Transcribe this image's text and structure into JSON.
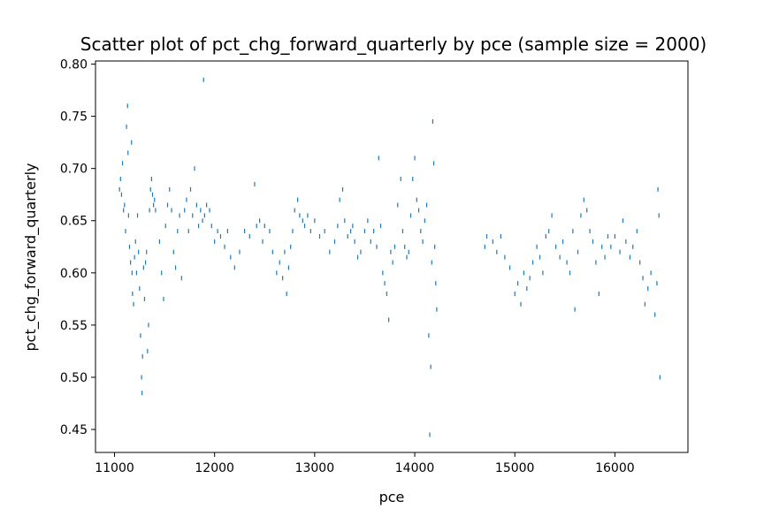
{
  "chart_data": {
    "type": "scatter",
    "title": "Scatter plot of pct_chg_forward_quarterly by pce (sample size = 2000)",
    "xlabel": "pce",
    "ylabel": "pct_chg_forward_quarterly",
    "xlim": [
      10810,
      16730
    ],
    "ylim": [
      0.428,
      0.803
    ],
    "xticks": [
      11000,
      12000,
      13000,
      14000,
      15000,
      16000
    ],
    "xtick_labels": [
      "11000",
      "12000",
      "13000",
      "14000",
      "15000",
      "16000"
    ],
    "yticks": [
      0.45,
      0.5,
      0.55,
      0.6,
      0.65,
      0.7,
      0.75,
      0.8
    ],
    "ytick_labels": [
      "0.45",
      "0.50",
      "0.55",
      "0.60",
      "0.65",
      "0.70",
      "0.75",
      "0.80"
    ],
    "grid": false,
    "marker_color": "#1f77b4",
    "series": [
      {
        "points": [
          [
            11050,
            0.68
          ],
          [
            11060,
            0.69
          ],
          [
            11070,
            0.675
          ],
          [
            11080,
            0.705
          ],
          [
            11090,
            0.66
          ],
          [
            11100,
            0.665
          ],
          [
            11110,
            0.64
          ],
          [
            11120,
            0.74
          ],
          [
            11130,
            0.76
          ],
          [
            11135,
            0.715
          ],
          [
            11140,
            0.655
          ],
          [
            11150,
            0.625
          ],
          [
            11160,
            0.61
          ],
          [
            11170,
            0.725
          ],
          [
            11175,
            0.6
          ],
          [
            11180,
            0.58
          ],
          [
            11190,
            0.57
          ],
          [
            11200,
            0.615
          ],
          [
            11210,
            0.63
          ],
          [
            11220,
            0.6
          ],
          [
            11230,
            0.655
          ],
          [
            11240,
            0.62
          ],
          [
            11250,
            0.585
          ],
          [
            11260,
            0.54
          ],
          [
            11270,
            0.5
          ],
          [
            11275,
            0.485
          ],
          [
            11280,
            0.52
          ],
          [
            11290,
            0.605
          ],
          [
            11300,
            0.575
          ],
          [
            11310,
            0.61
          ],
          [
            11320,
            0.62
          ],
          [
            11330,
            0.525
          ],
          [
            11340,
            0.55
          ],
          [
            11350,
            0.66
          ],
          [
            11360,
            0.68
          ],
          [
            11370,
            0.69
          ],
          [
            11380,
            0.675
          ],
          [
            11390,
            0.665
          ],
          [
            11400,
            0.67
          ],
          [
            11410,
            0.66
          ],
          [
            11450,
            0.63
          ],
          [
            11470,
            0.6
          ],
          [
            11490,
            0.575
          ],
          [
            11510,
            0.645
          ],
          [
            11530,
            0.665
          ],
          [
            11550,
            0.68
          ],
          [
            11570,
            0.66
          ],
          [
            11590,
            0.62
          ],
          [
            11610,
            0.605
          ],
          [
            11630,
            0.64
          ],
          [
            11650,
            0.655
          ],
          [
            11670,
            0.595
          ],
          [
            11700,
            0.66
          ],
          [
            11720,
            0.67
          ],
          [
            11740,
            0.64
          ],
          [
            11760,
            0.68
          ],
          [
            11780,
            0.655
          ],
          [
            11800,
            0.7
          ],
          [
            11820,
            0.665
          ],
          [
            11840,
            0.645
          ],
          [
            11860,
            0.66
          ],
          [
            11880,
            0.65
          ],
          [
            11890,
            0.785
          ],
          [
            11900,
            0.655
          ],
          [
            11920,
            0.665
          ],
          [
            11950,
            0.66
          ],
          [
            11970,
            0.645
          ],
          [
            12000,
            0.63
          ],
          [
            12030,
            0.64
          ],
          [
            12060,
            0.635
          ],
          [
            12100,
            0.625
          ],
          [
            12130,
            0.64
          ],
          [
            12160,
            0.615
          ],
          [
            12200,
            0.605
          ],
          [
            12250,
            0.62
          ],
          [
            12300,
            0.64
          ],
          [
            12350,
            0.635
          ],
          [
            12400,
            0.685
          ],
          [
            12420,
            0.645
          ],
          [
            12450,
            0.65
          ],
          [
            12480,
            0.63
          ],
          [
            12500,
            0.645
          ],
          [
            12550,
            0.64
          ],
          [
            12580,
            0.62
          ],
          [
            12620,
            0.6
          ],
          [
            12650,
            0.61
          ],
          [
            12680,
            0.595
          ],
          [
            12700,
            0.62
          ],
          [
            12720,
            0.58
          ],
          [
            12740,
            0.605
          ],
          [
            12760,
            0.625
          ],
          [
            12780,
            0.64
          ],
          [
            12800,
            0.66
          ],
          [
            12830,
            0.67
          ],
          [
            12850,
            0.655
          ],
          [
            12880,
            0.65
          ],
          [
            12900,
            0.645
          ],
          [
            12930,
            0.655
          ],
          [
            12960,
            0.64
          ],
          [
            13000,
            0.65
          ],
          [
            13050,
            0.635
          ],
          [
            13100,
            0.64
          ],
          [
            13150,
            0.62
          ],
          [
            13200,
            0.63
          ],
          [
            13230,
            0.645
          ],
          [
            13250,
            0.67
          ],
          [
            13280,
            0.68
          ],
          [
            13300,
            0.65
          ],
          [
            13330,
            0.635
          ],
          [
            13360,
            0.64
          ],
          [
            13380,
            0.645
          ],
          [
            13400,
            0.63
          ],
          [
            13430,
            0.615
          ],
          [
            13460,
            0.62
          ],
          [
            13500,
            0.64
          ],
          [
            13530,
            0.65
          ],
          [
            13560,
            0.63
          ],
          [
            13590,
            0.64
          ],
          [
            13620,
            0.625
          ],
          [
            13640,
            0.71
          ],
          [
            13660,
            0.645
          ],
          [
            13680,
            0.6
          ],
          [
            13700,
            0.59
          ],
          [
            13720,
            0.58
          ],
          [
            13740,
            0.555
          ],
          [
            13760,
            0.62
          ],
          [
            13780,
            0.61
          ],
          [
            13800,
            0.625
          ],
          [
            13830,
            0.665
          ],
          [
            13860,
            0.69
          ],
          [
            13880,
            0.64
          ],
          [
            13900,
            0.625
          ],
          [
            13920,
            0.615
          ],
          [
            13940,
            0.62
          ],
          [
            13960,
            0.655
          ],
          [
            13980,
            0.69
          ],
          [
            14000,
            0.71
          ],
          [
            14020,
            0.67
          ],
          [
            14040,
            0.66
          ],
          [
            14060,
            0.64
          ],
          [
            14080,
            0.63
          ],
          [
            14100,
            0.65
          ],
          [
            14120,
            0.665
          ],
          [
            14140,
            0.54
          ],
          [
            14150,
            0.445
          ],
          [
            14160,
            0.51
          ],
          [
            14170,
            0.61
          ],
          [
            14180,
            0.745
          ],
          [
            14190,
            0.705
          ],
          [
            14200,
            0.625
          ],
          [
            14210,
            0.59
          ],
          [
            14220,
            0.565
          ],
          [
            14700,
            0.625
          ],
          [
            14720,
            0.635
          ],
          [
            14780,
            0.63
          ],
          [
            14820,
            0.62
          ],
          [
            14860,
            0.635
          ],
          [
            14900,
            0.615
          ],
          [
            14950,
            0.605
          ],
          [
            15000,
            0.58
          ],
          [
            15030,
            0.59
          ],
          [
            15060,
            0.57
          ],
          [
            15090,
            0.6
          ],
          [
            15120,
            0.585
          ],
          [
            15150,
            0.595
          ],
          [
            15180,
            0.61
          ],
          [
            15220,
            0.625
          ],
          [
            15250,
            0.615
          ],
          [
            15280,
            0.6
          ],
          [
            15310,
            0.635
          ],
          [
            15340,
            0.64
          ],
          [
            15370,
            0.655
          ],
          [
            15410,
            0.625
          ],
          [
            15450,
            0.615
          ],
          [
            15480,
            0.63
          ],
          [
            15520,
            0.61
          ],
          [
            15550,
            0.6
          ],
          [
            15580,
            0.64
          ],
          [
            15600,
            0.565
          ],
          [
            15630,
            0.62
          ],
          [
            15660,
            0.655
          ],
          [
            15690,
            0.67
          ],
          [
            15720,
            0.66
          ],
          [
            15750,
            0.64
          ],
          [
            15780,
            0.63
          ],
          [
            15810,
            0.61
          ],
          [
            15840,
            0.58
          ],
          [
            15870,
            0.625
          ],
          [
            15900,
            0.615
          ],
          [
            15930,
            0.635
          ],
          [
            15960,
            0.625
          ],
          [
            16000,
            0.635
          ],
          [
            16050,
            0.62
          ],
          [
            16080,
            0.65
          ],
          [
            16110,
            0.63
          ],
          [
            16150,
            0.615
          ],
          [
            16180,
            0.625
          ],
          [
            16220,
            0.64
          ],
          [
            16250,
            0.61
          ],
          [
            16280,
            0.595
          ],
          [
            16300,
            0.57
          ],
          [
            16330,
            0.585
          ],
          [
            16360,
            0.6
          ],
          [
            16400,
            0.56
          ],
          [
            16420,
            0.59
          ],
          [
            16430,
            0.68
          ],
          [
            16440,
            0.655
          ],
          [
            16450,
            0.5
          ]
        ]
      }
    ]
  }
}
